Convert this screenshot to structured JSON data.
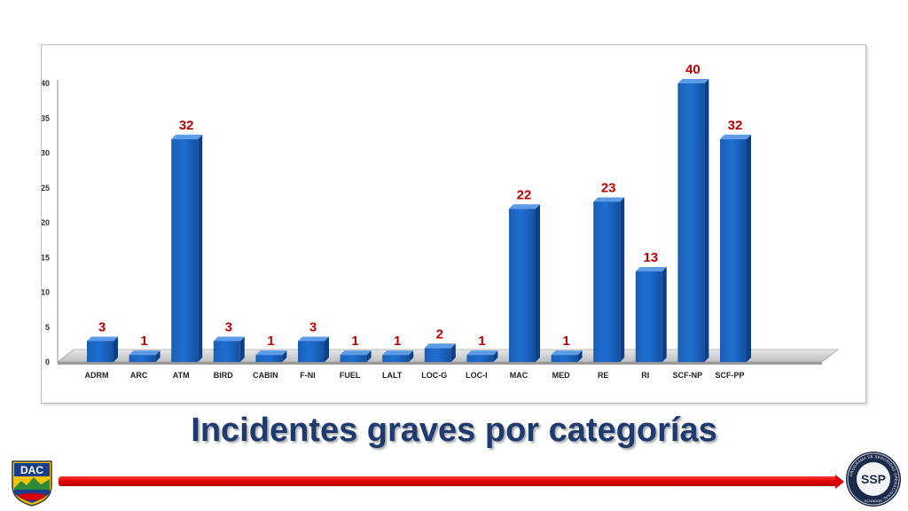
{
  "slide": {
    "title": "Incidentes graves por categorías"
  },
  "logos": {
    "left_text": "DAC",
    "right_text": "SSP",
    "right_ring_text": "PROGRAMA DE SEGURIDAD OPERACIONAL",
    "right_country": "ECUADOR"
  },
  "colors": {
    "bar": "#1f6fd1",
    "label": "#c00000",
    "title": "#1f3a6e",
    "line": "#e00000"
  },
  "chart_data": {
    "type": "bar",
    "categories": [
      "ADRM",
      "ARC",
      "ATM",
      "BIRD",
      "CABIN",
      "F-NI",
      "FUEL",
      "LALT",
      "LOC-G",
      "LOC-I",
      "MAC",
      "MED",
      "RE",
      "RI",
      "SCF-NP",
      "SCF-PP"
    ],
    "values": [
      3,
      1,
      32,
      3,
      1,
      3,
      1,
      1,
      2,
      1,
      22,
      1,
      23,
      13,
      40,
      32
    ],
    "yticks": [
      0,
      5,
      10,
      15,
      20,
      25,
      30,
      35,
      40
    ],
    "ylim": [
      0,
      40
    ],
    "data_labels": true,
    "style": "3d",
    "grid": false,
    "legend": "none",
    "title": "",
    "xlabel": "",
    "ylabel": ""
  }
}
